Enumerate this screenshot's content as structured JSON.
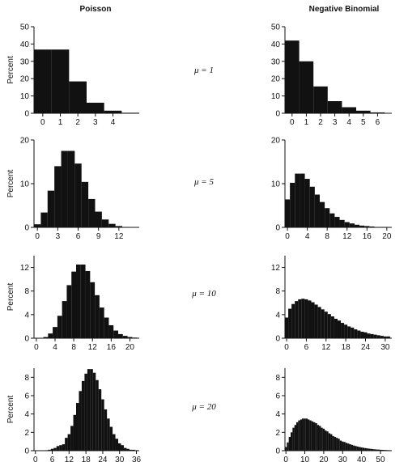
{
  "figure": {
    "left_title": "Poisson",
    "right_title": "Negative Binomial",
    "y_axis_label": "Percent",
    "bar_color": "#111111",
    "axis_color": "#111111"
  },
  "rows": [
    {
      "mu_label": "μ = 1",
      "charts": [
        {
          "type": "bar",
          "column": "Poisson",
          "ylabel": "Percent",
          "ylim": [
            0,
            50
          ],
          "yticks": [
            0,
            10,
            20,
            30,
            40,
            50
          ],
          "xlim": [
            -0.5,
            5.5
          ],
          "xticks": [
            0,
            1,
            2,
            3,
            4
          ],
          "x": [
            0,
            1,
            2,
            3,
            4,
            5
          ],
          "values": [
            36.8,
            36.8,
            18.4,
            6.1,
            1.5,
            0.3
          ]
        },
        {
          "type": "bar",
          "column": "Negative Binomial",
          "ylabel": "",
          "ylim": [
            0,
            50
          ],
          "yticks": [
            0,
            10,
            20,
            30,
            40,
            50
          ],
          "xlim": [
            -0.5,
            7
          ],
          "xticks": [
            0,
            1,
            2,
            3,
            4,
            5,
            6
          ],
          "x": [
            0,
            1,
            2,
            3,
            4,
            5,
            6
          ],
          "values": [
            42,
            30,
            15.5,
            7,
            3.5,
            1.5,
            0.5
          ]
        }
      ]
    },
    {
      "mu_label": "μ = 5",
      "charts": [
        {
          "type": "bar",
          "column": "Poisson",
          "ylabel": "Percent",
          "ylim": [
            0,
            20
          ],
          "yticks": [
            0,
            10,
            20
          ],
          "xlim": [
            -0.5,
            15
          ],
          "xticks": [
            0,
            3,
            6,
            9,
            12
          ],
          "x": [
            0,
            1,
            2,
            3,
            4,
            5,
            6,
            7,
            8,
            9,
            10,
            11,
            12,
            13,
            14
          ],
          "values": [
            0.7,
            3.4,
            8.4,
            14.0,
            17.5,
            17.5,
            14.6,
            10.4,
            6.5,
            3.6,
            1.8,
            0.8,
            0.3,
            0.1,
            0.0
          ]
        },
        {
          "type": "bar",
          "column": "Negative Binomial",
          "ylabel": "",
          "ylim": [
            0,
            20
          ],
          "yticks": [
            0,
            10,
            20
          ],
          "xlim": [
            -0.5,
            21
          ],
          "xticks": [
            0,
            4,
            8,
            12,
            16,
            20
          ],
          "x": [
            0,
            1,
            2,
            3,
            4,
            5,
            6,
            7,
            8,
            9,
            10,
            11,
            12,
            13,
            14,
            15,
            16,
            17,
            18,
            19,
            20
          ],
          "values": [
            6.4,
            10.2,
            12.3,
            12.3,
            11.1,
            9.3,
            7.5,
            5.8,
            4.4,
            3.2,
            2.4,
            1.7,
            1.2,
            0.9,
            0.6,
            0.4,
            0.3,
            0.2,
            0.1,
            0.1,
            0.1
          ]
        }
      ]
    },
    {
      "mu_label": "μ = 10",
      "charts": [
        {
          "type": "bar",
          "column": "Poisson",
          "ylabel": "Percent",
          "ylim": [
            0,
            14
          ],
          "yticks": [
            0,
            4,
            8,
            12
          ],
          "xlim": [
            -0.5,
            22
          ],
          "xticks": [
            0,
            4,
            8,
            12,
            16,
            20
          ],
          "x": [
            0,
            1,
            2,
            3,
            4,
            5,
            6,
            7,
            8,
            9,
            10,
            11,
            12,
            13,
            14,
            15,
            16,
            17,
            18,
            19,
            20,
            21
          ],
          "values": [
            0.0,
            0.05,
            0.2,
            0.8,
            1.9,
            3.8,
            6.3,
            9.0,
            11.3,
            12.5,
            12.5,
            11.4,
            9.5,
            7.3,
            5.2,
            3.5,
            2.2,
            1.3,
            0.7,
            0.4,
            0.2,
            0.1
          ]
        },
        {
          "type": "bar",
          "column": "Negative Binomial",
          "ylabel": "",
          "ylim": [
            0,
            14
          ],
          "yticks": [
            0,
            4,
            8,
            12
          ],
          "xlim": [
            -0.5,
            32
          ],
          "xticks": [
            0,
            6,
            12,
            18,
            24,
            30
          ],
          "x": [
            0,
            1,
            2,
            3,
            4,
            5,
            6,
            7,
            8,
            9,
            10,
            11,
            12,
            13,
            14,
            15,
            16,
            17,
            18,
            19,
            20,
            21,
            22,
            23,
            24,
            25,
            26,
            27,
            28,
            29,
            30,
            31
          ],
          "values": [
            3.5,
            5.0,
            5.8,
            6.3,
            6.6,
            6.7,
            6.6,
            6.4,
            6.1,
            5.7,
            5.3,
            4.9,
            4.5,
            4.1,
            3.7,
            3.3,
            3.0,
            2.6,
            2.3,
            2.0,
            1.8,
            1.5,
            1.3,
            1.1,
            1.0,
            0.8,
            0.7,
            0.6,
            0.5,
            0.4,
            0.3,
            0.3
          ]
        }
      ]
    },
    {
      "mu_label": "μ = 20",
      "charts": [
        {
          "type": "bar",
          "column": "Poisson",
          "ylabel": "Percent",
          "ylim": [
            0,
            9
          ],
          "yticks": [
            0,
            2,
            4,
            6,
            8
          ],
          "xlim": [
            -0.5,
            37
          ],
          "xticks": [
            0,
            6,
            12,
            18,
            24,
            30,
            36
          ],
          "x": [
            0,
            1,
            2,
            3,
            4,
            5,
            6,
            7,
            8,
            9,
            10,
            11,
            12,
            13,
            14,
            15,
            16,
            17,
            18,
            19,
            20,
            21,
            22,
            23,
            24,
            25,
            26,
            27,
            28,
            29,
            30,
            31,
            32,
            33,
            34,
            35,
            36
          ],
          "values": [
            0.0,
            0.0,
            0.0,
            0.02,
            0.05,
            0.1,
            0.2,
            0.3,
            0.5,
            0.6,
            0.7,
            1.4,
            1.8,
            2.7,
            3.9,
            5.2,
            6.5,
            7.6,
            8.4,
            8.9,
            8.9,
            8.5,
            7.7,
            6.7,
            5.6,
            4.5,
            3.5,
            2.6,
            1.8,
            1.3,
            0.8,
            0.6,
            0.3,
            0.2,
            0.1,
            0.1,
            0.05
          ]
        },
        {
          "type": "bar",
          "column": "Negative Binomial",
          "ylabel": "",
          "ylim": [
            0,
            9
          ],
          "yticks": [
            0,
            2,
            4,
            6,
            8
          ],
          "xlim": [
            -0.5,
            56
          ],
          "xticks": [
            0,
            10,
            20,
            30,
            40,
            50
          ],
          "x": [
            0,
            1,
            2,
            3,
            4,
            5,
            6,
            7,
            8,
            9,
            10,
            11,
            12,
            13,
            14,
            15,
            16,
            17,
            18,
            19,
            20,
            21,
            22,
            23,
            24,
            25,
            26,
            27,
            28,
            29,
            30,
            31,
            32,
            33,
            34,
            35,
            36,
            37,
            38,
            39,
            40,
            41,
            42,
            43,
            44,
            45,
            46,
            47,
            48,
            49,
            50,
            51,
            52,
            53,
            54,
            55
          ],
          "values": [
            0.4,
            0.9,
            1.5,
            2.0,
            2.5,
            2.8,
            3.1,
            3.3,
            3.4,
            3.5,
            3.5,
            3.5,
            3.4,
            3.3,
            3.2,
            3.1,
            3.0,
            2.8,
            2.7,
            2.5,
            2.4,
            2.2,
            2.1,
            1.9,
            1.8,
            1.6,
            1.5,
            1.4,
            1.3,
            1.1,
            1.0,
            0.95,
            0.85,
            0.78,
            0.7,
            0.63,
            0.56,
            0.5,
            0.45,
            0.4,
            0.36,
            0.32,
            0.28,
            0.25,
            0.22,
            0.2,
            0.17,
            0.15,
            0.13,
            0.12,
            0.1,
            0.09,
            0.08,
            0.07,
            0.06,
            0.05
          ]
        }
      ]
    }
  ]
}
